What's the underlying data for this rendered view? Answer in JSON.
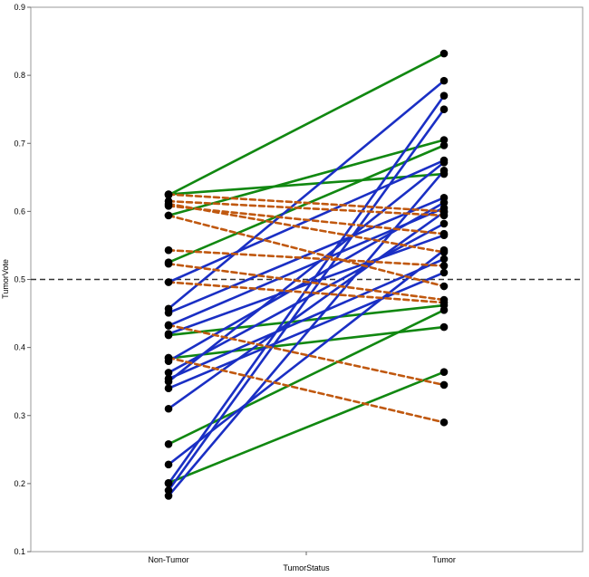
{
  "chart_data": {
    "type": "line",
    "title": "",
    "xlabel": "TumorStatus",
    "ylabel": "TumorVote",
    "categories": [
      "Non-Tumor",
      "Tumor"
    ],
    "ylim": [
      0.1,
      0.9
    ],
    "yticks": [
      "0.1",
      "0.2",
      "0.3",
      "0.4",
      "0.5",
      "0.6",
      "0.7",
      "0.8",
      "0.9"
    ],
    "reference_line": {
      "y": 0.5,
      "style": "dashed",
      "color": "#333333"
    },
    "grid": false,
    "line_colors": {
      "green": "#118811",
      "blue": "#1a2fc4",
      "orange": "#c0580f"
    },
    "pairs": [
      {
        "values": [
          0.624,
          0.832
        ],
        "color": "green",
        "dashed": false
      },
      {
        "values": [
          0.625,
          0.655
        ],
        "color": "green",
        "dashed": false
      },
      {
        "values": [
          0.594,
          0.705
        ],
        "color": "green",
        "dashed": false
      },
      {
        "values": [
          0.525,
          0.697
        ],
        "color": "green",
        "dashed": false
      },
      {
        "values": [
          0.418,
          0.462
        ],
        "color": "green",
        "dashed": false
      },
      {
        "values": [
          0.384,
          0.43
        ],
        "color": "green",
        "dashed": false
      },
      {
        "values": [
          0.258,
          0.455
        ],
        "color": "green",
        "dashed": false
      },
      {
        "values": [
          0.201,
          0.364
        ],
        "color": "green",
        "dashed": false
      },
      {
        "values": [
          0.457,
          0.792
        ],
        "color": "blue",
        "dashed": false
      },
      {
        "values": [
          0.496,
          0.675
        ],
        "color": "blue",
        "dashed": false
      },
      {
        "values": [
          0.451,
          0.62
        ],
        "color": "blue",
        "dashed": false
      },
      {
        "values": [
          0.432,
          0.605
        ],
        "color": "blue",
        "dashed": false
      },
      {
        "values": [
          0.42,
          0.565
        ],
        "color": "blue",
        "dashed": false
      },
      {
        "values": [
          0.363,
          0.582
        ],
        "color": "blue",
        "dashed": false
      },
      {
        "values": [
          0.354,
          0.53
        ],
        "color": "blue",
        "dashed": false
      },
      {
        "values": [
          0.34,
          0.51
        ],
        "color": "blue",
        "dashed": false
      },
      {
        "values": [
          0.35,
          0.672
        ],
        "color": "blue",
        "dashed": false
      },
      {
        "values": [
          0.38,
          0.613
        ],
        "color": "blue",
        "dashed": false
      },
      {
        "values": [
          0.31,
          0.599
        ],
        "color": "blue",
        "dashed": false
      },
      {
        "values": [
          0.228,
          0.543
        ],
        "color": "blue",
        "dashed": false
      },
      {
        "values": [
          0.2,
          0.77
        ],
        "color": "blue",
        "dashed": false
      },
      {
        "values": [
          0.19,
          0.75
        ],
        "color": "blue",
        "dashed": false
      },
      {
        "values": [
          0.182,
          0.66
        ],
        "color": "blue",
        "dashed": false
      },
      {
        "values": [
          0.625,
          0.6
        ],
        "color": "orange",
        "dashed": true
      },
      {
        "values": [
          0.615,
          0.594
        ],
        "color": "orange",
        "dashed": true
      },
      {
        "values": [
          0.608,
          0.567
        ],
        "color": "orange",
        "dashed": true
      },
      {
        "values": [
          0.611,
          0.54
        ],
        "color": "orange",
        "dashed": true
      },
      {
        "values": [
          0.594,
          0.49
        ],
        "color": "orange",
        "dashed": true
      },
      {
        "values": [
          0.543,
          0.52
        ],
        "color": "orange",
        "dashed": true
      },
      {
        "values": [
          0.523,
          0.47
        ],
        "color": "orange",
        "dashed": true
      },
      {
        "values": [
          0.496,
          0.466
        ],
        "color": "orange",
        "dashed": true
      },
      {
        "values": [
          0.433,
          0.345
        ],
        "color": "orange",
        "dashed": true
      },
      {
        "values": [
          0.385,
          0.29
        ],
        "color": "orange",
        "dashed": true
      }
    ]
  }
}
